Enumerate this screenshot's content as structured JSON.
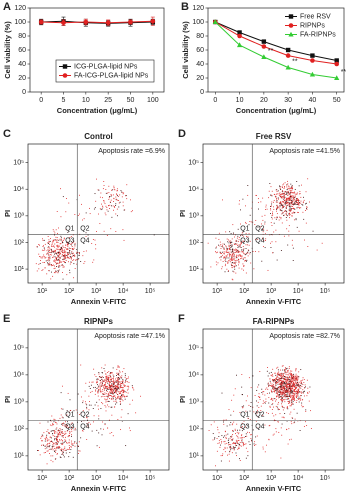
{
  "chart_data": [
    {
      "type": "line",
      "panel": "A",
      "xlabel": "Concentration (μg/mL)",
      "ylabel": "Cell viability (%)",
      "categories": [
        "0",
        "5",
        "10",
        "25",
        "50",
        "100"
      ],
      "ylim": [
        0,
        120
      ],
      "yticks": [
        0,
        20,
        40,
        60,
        80,
        100,
        120
      ],
      "legend": "bottom",
      "series": [
        {
          "name": "ICG-PLGA-lipid NPs",
          "color": "#111111",
          "marker": "square",
          "values": [
            100,
            101,
            99,
            98,
            99,
            100
          ],
          "errors": [
            4,
            6,
            5,
            4,
            5,
            4
          ]
        },
        {
          "name": "FA-ICG-PLGA-lipid NPs",
          "color": "#e02020",
          "marker": "circle",
          "values": [
            100,
            99,
            100,
            99,
            100,
            101
          ],
          "errors": [
            3,
            4,
            4,
            4,
            3,
            6
          ]
        }
      ]
    },
    {
      "type": "line",
      "panel": "B",
      "xlabel": "Concentration (μg/mL)",
      "ylabel": "Cell viability (%)",
      "x": [
        0,
        10,
        20,
        30,
        40,
        50
      ],
      "xlim": [
        -3,
        53
      ],
      "xticks": [
        0,
        10,
        20,
        30,
        40,
        50
      ],
      "ylim": [
        0,
        120
      ],
      "yticks": [
        0,
        20,
        40,
        60,
        80,
        100,
        120
      ],
      "legend": "top-right",
      "series": [
        {
          "name": "Free RSV",
          "color": "#111111",
          "marker": "square",
          "values": [
            100,
            85,
            72,
            60,
            52,
            45
          ]
        },
        {
          "name": "RIPNPs",
          "color": "#e02020",
          "marker": "circle",
          "values": [
            100,
            80,
            65,
            52,
            45,
            40
          ]
        },
        {
          "name": "FA-RIPNPs",
          "color": "#33cc33",
          "marker": "triangle",
          "values": [
            100,
            67,
            50,
            35,
            25,
            20
          ]
        }
      ],
      "annotations": [
        {
          "text": "**",
          "x": 20,
          "y": 50
        },
        {
          "text": "**",
          "x": 30,
          "y": 35
        },
        {
          "text": "**",
          "x": 50,
          "y": 20
        }
      ]
    },
    {
      "type": "flow",
      "panel": "C",
      "title": "Control",
      "annotation": "Apoptosis rate =6.9%",
      "xlabel": "Annexin V-FITC",
      "ylabel": "PI",
      "log": true,
      "xlim": [
        3,
        500000
      ],
      "ylim": [
        3,
        500000
      ],
      "gate_x": 200,
      "gate_y": 200,
      "xticks": [
        {
          "value": 10,
          "label": "10¹"
        },
        {
          "value": 100,
          "label": "10²"
        },
        {
          "value": 1000,
          "label": "10³"
        },
        {
          "value": 10000,
          "label": "10⁴"
        },
        {
          "value": 100000,
          "label": "10⁵"
        }
      ],
      "yticks": [
        {
          "value": 10,
          "label": "10¹"
        },
        {
          "value": 100,
          "label": "10²"
        },
        {
          "value": 1000,
          "label": "10³"
        },
        {
          "value": 10000,
          "label": "10⁴"
        },
        {
          "value": 100000,
          "label": "10⁵"
        }
      ],
      "quadrants": [
        "Q1",
        "Q2",
        "Q3",
        "Q4"
      ]
    },
    {
      "type": "flow",
      "panel": "D",
      "title": "Free RSV",
      "annotation": "Apoptosis rate =41.5%",
      "xlabel": "Annexin V-FITC",
      "ylabel": "PI",
      "log": true,
      "xlim": [
        3,
        500000
      ],
      "ylim": [
        3,
        500000
      ],
      "gate_x": 200,
      "gate_y": 200,
      "xticks": [
        {
          "value": 10,
          "label": "10¹"
        },
        {
          "value": 100,
          "label": "10²"
        },
        {
          "value": 1000,
          "label": "10³"
        },
        {
          "value": 10000,
          "label": "10⁴"
        },
        {
          "value": 100000,
          "label": "10⁵"
        }
      ],
      "yticks": [
        {
          "value": 10,
          "label": "10¹"
        },
        {
          "value": 100,
          "label": "10²"
        },
        {
          "value": 1000,
          "label": "10³"
        },
        {
          "value": 10000,
          "label": "10⁴"
        },
        {
          "value": 100000,
          "label": "10⁵"
        }
      ],
      "quadrants": [
        "Q1",
        "Q2",
        "Q3",
        "Q4"
      ]
    },
    {
      "type": "flow",
      "panel": "E",
      "title": "RIPNPs",
      "annotation": "Apoptosis rate =47.1%",
      "xlabel": "Annexin V-FITC",
      "ylabel": "PI",
      "log": true,
      "xlim": [
        3,
        500000
      ],
      "ylim": [
        3,
        500000
      ],
      "gate_x": 200,
      "gate_y": 200,
      "xticks": [
        {
          "value": 10,
          "label": "10¹"
        },
        {
          "value": 100,
          "label": "10²"
        },
        {
          "value": 1000,
          "label": "10³"
        },
        {
          "value": 10000,
          "label": "10⁴"
        },
        {
          "value": 100000,
          "label": "10⁵"
        }
      ],
      "yticks": [
        {
          "value": 10,
          "label": "10¹"
        },
        {
          "value": 100,
          "label": "10²"
        },
        {
          "value": 1000,
          "label": "10³"
        },
        {
          "value": 10000,
          "label": "10⁴"
        },
        {
          "value": 100000,
          "label": "10⁵"
        }
      ],
      "quadrants": [
        "Q1",
        "Q2",
        "Q3",
        "Q4"
      ]
    },
    {
      "type": "flow",
      "panel": "F",
      "title": "FA-RIPNPs",
      "annotation": "Apoptosis rate =82.7%",
      "xlabel": "Annexin V-FITC",
      "ylabel": "PI",
      "log": true,
      "xlim": [
        3,
        500000
      ],
      "ylim": [
        3,
        500000
      ],
      "gate_x": 200,
      "gate_y": 200,
      "xticks": [
        {
          "value": 10,
          "label": "10¹"
        },
        {
          "value": 100,
          "label": "10²"
        },
        {
          "value": 1000,
          "label": "10³"
        },
        {
          "value": 10000,
          "label": "10⁴"
        },
        {
          "value": 100000,
          "label": "10⁵"
        }
      ],
      "yticks": [
        {
          "value": 10,
          "label": "10¹"
        },
        {
          "value": 100,
          "label": "10²"
        },
        {
          "value": 1000,
          "label": "10³"
        },
        {
          "value": 10000,
          "label": "10⁴"
        },
        {
          "value": 100000,
          "label": "10⁵"
        }
      ],
      "quadrants": [
        "Q1",
        "Q2",
        "Q3",
        "Q4"
      ]
    }
  ]
}
